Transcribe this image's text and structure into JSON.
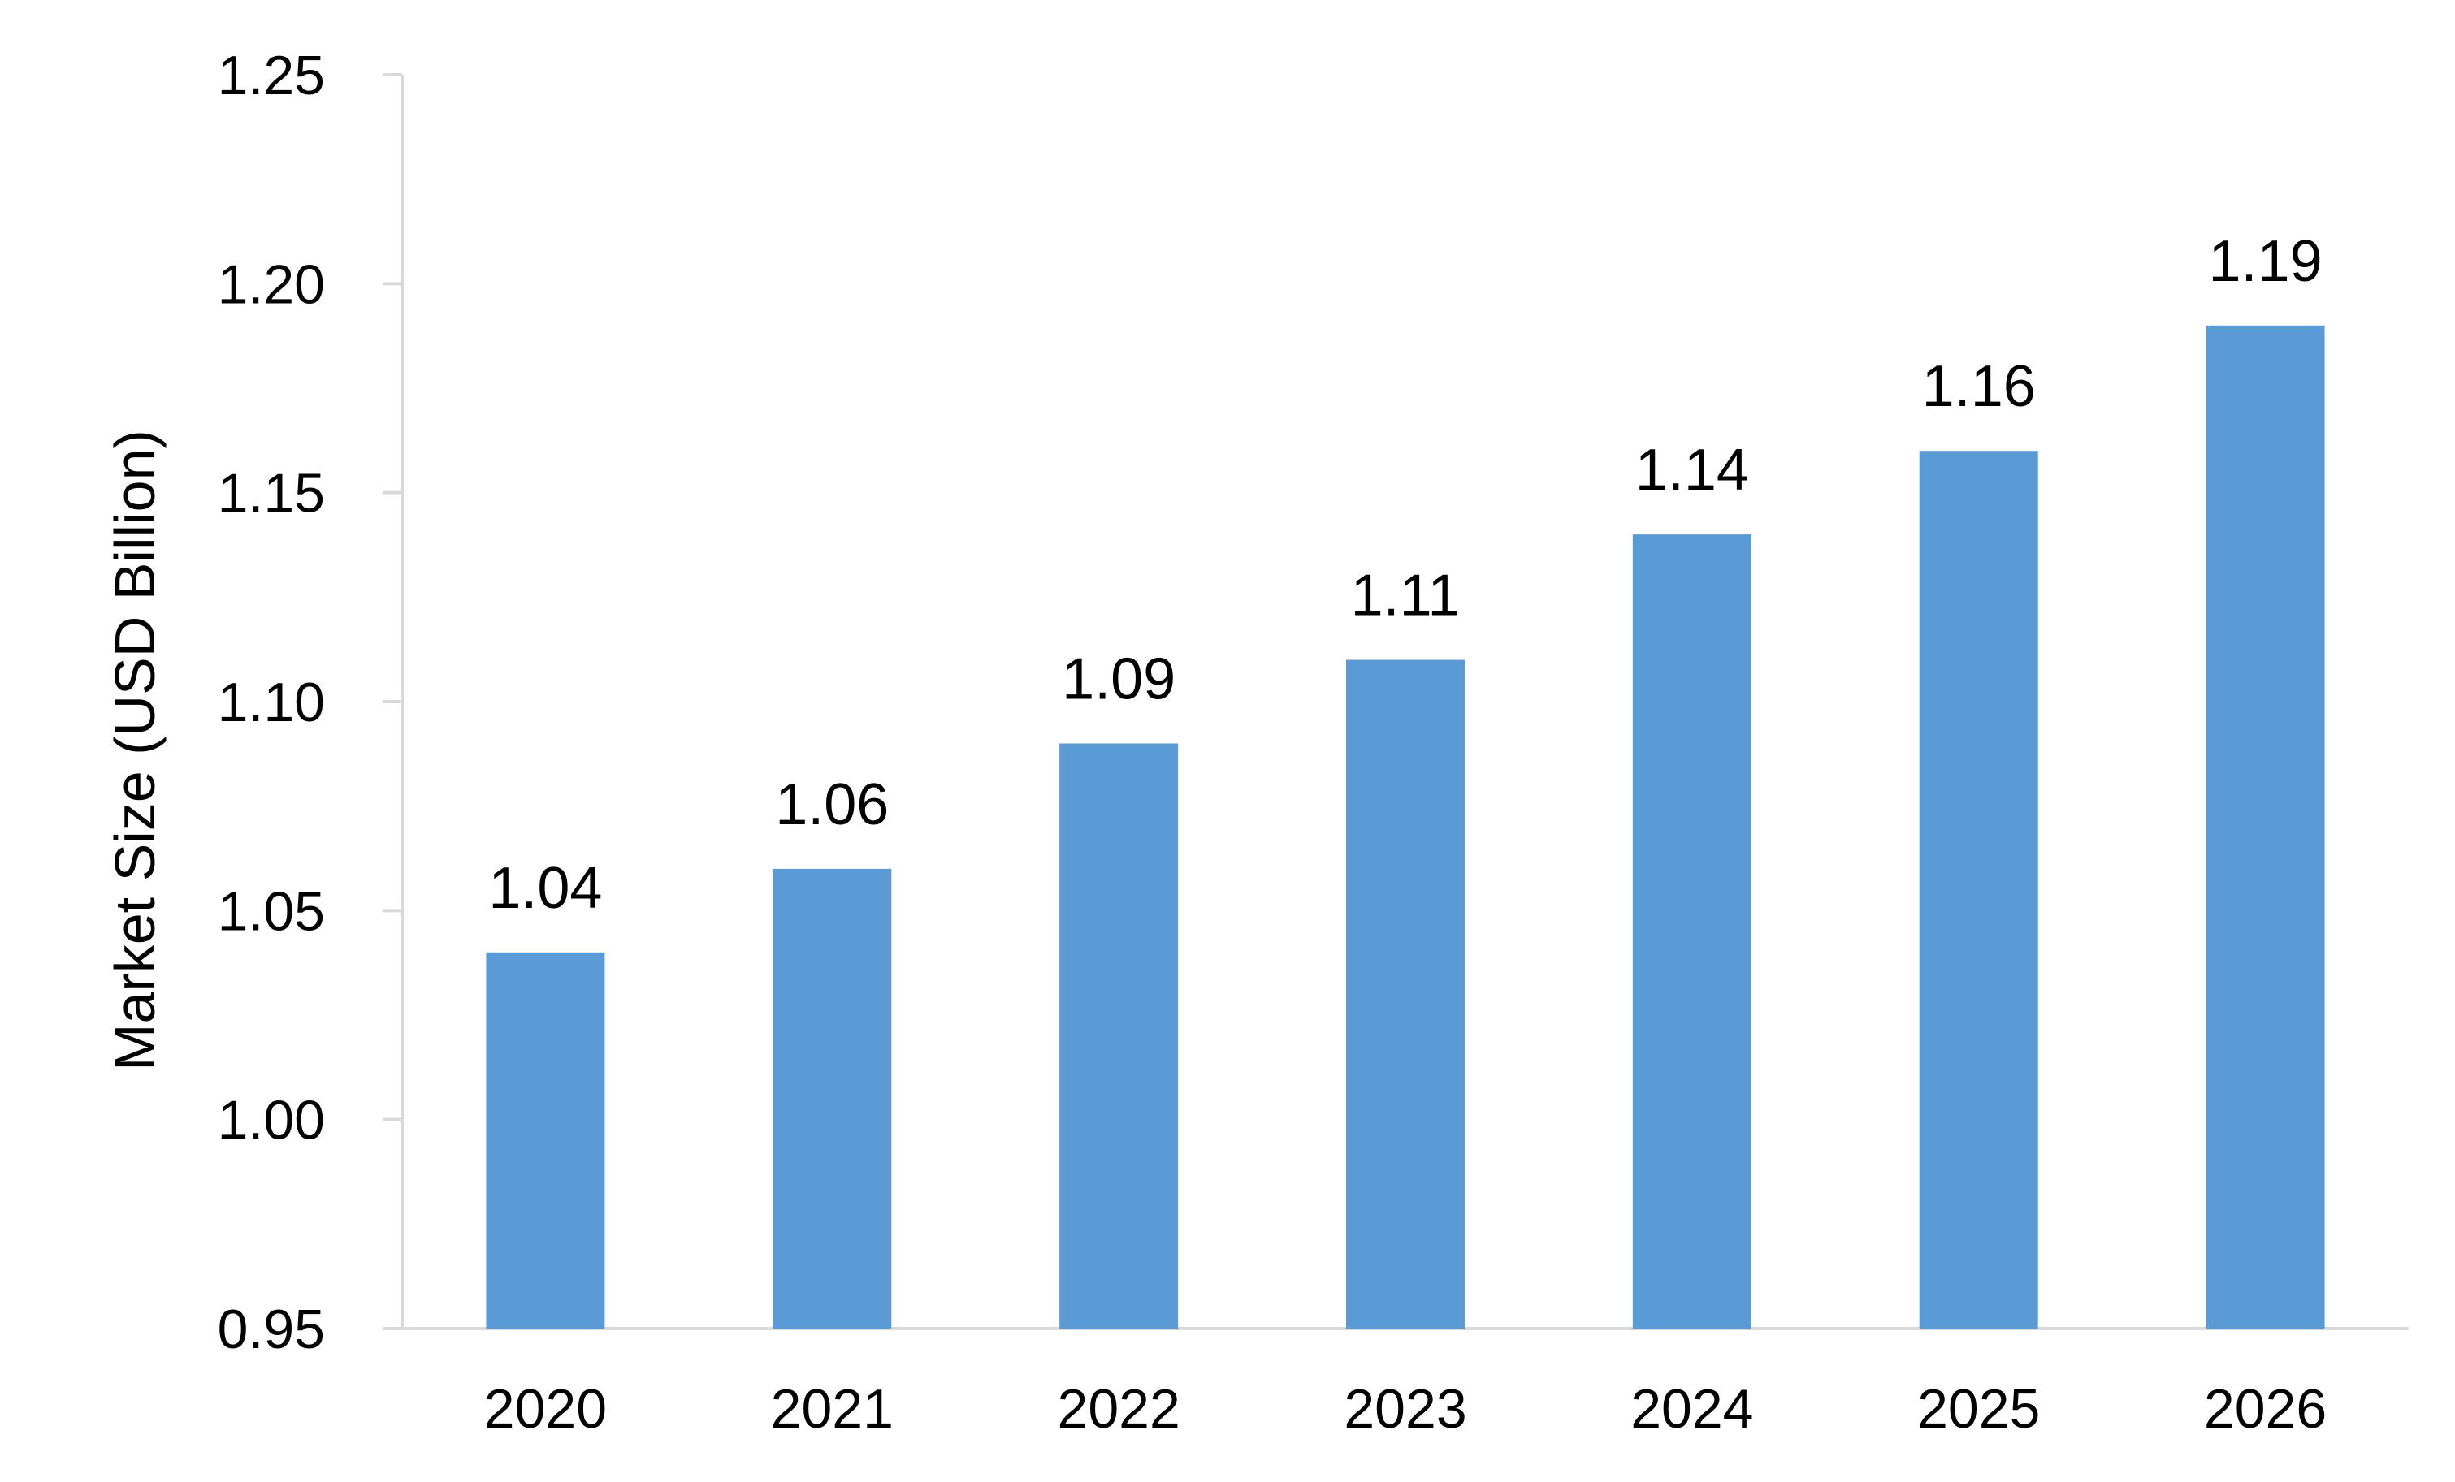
{
  "chart_data": {
    "type": "bar",
    "categories": [
      "2020",
      "2021",
      "2022",
      "2023",
      "2024",
      "2025",
      "2026"
    ],
    "values": [
      1.04,
      1.06,
      1.09,
      1.11,
      1.14,
      1.16,
      1.19
    ],
    "data_labels": [
      "1.04",
      "1.06",
      "1.09",
      "1.11",
      "1.14",
      "1.16",
      "1.19"
    ],
    "title": "",
    "xlabel": "",
    "ylabel": "Market Size (USD Billion)",
    "ylim": [
      0.95,
      1.25
    ],
    "yticks": [
      "0.95",
      "1.00",
      "1.05",
      "1.10",
      "1.15",
      "1.20",
      "1.25"
    ],
    "bar_color": "#5b9bd5",
    "axis_color": "#d9d9d9",
    "grid": false,
    "legend": "none"
  }
}
